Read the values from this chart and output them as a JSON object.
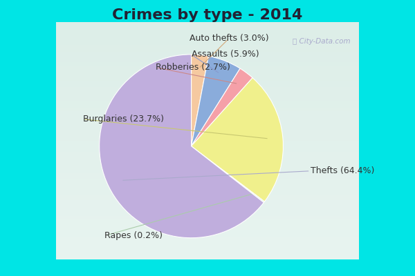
{
  "title": "Crimes by type - 2014",
  "pie_labels_ordered": [
    "Auto thefts",
    "Assaults",
    "Robberies",
    "Burglaries",
    "Rapes",
    "Thefts"
  ],
  "pie_values_ordered": [
    3.0,
    5.9,
    2.7,
    23.7,
    0.2,
    64.4
  ],
  "pie_colors_ordered": [
    "#f5c9a0",
    "#8aacdb",
    "#f5a0a8",
    "#f0f08c",
    "#c8e8c8",
    "#c0aedd"
  ],
  "pie_label_texts": [
    "Auto thefts (3.0%)",
    "Assaults (5.9%)",
    "Robberies (2.7%)",
    "Burglaries (23.7%)",
    "Rapes (0.2%)",
    "Thefts (64.4%)"
  ],
  "label_ha": [
    "center",
    "right",
    "right",
    "right",
    "left",
    "left"
  ],
  "bg_outer": "#00e5e5",
  "bg_inner_top": "#e0f0ee",
  "bg_inner_bottom": "#c8e8d8",
  "title_fontsize": 16,
  "label_fontsize": 9,
  "title_color": "#222233",
  "watermark": "City-Data.com"
}
